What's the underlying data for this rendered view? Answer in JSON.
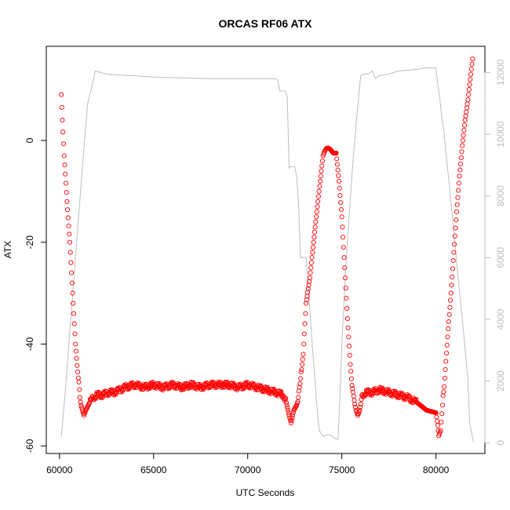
{
  "chart_data": {
    "type": "scatter",
    "title": "ORCAS RF06 ATX",
    "xlabel": "UTC Seconds",
    "ylabel": "ATX",
    "xlim": [
      59300,
      82600
    ],
    "ylim": [
      -61.5,
      18.5
    ],
    "x_ticks": [
      60000,
      65000,
      70000,
      75000,
      80000
    ],
    "y_ticks": [
      -60,
      -40,
      -20,
      0
    ],
    "y2lim": [
      -350,
      12850
    ],
    "y2_ticks": [
      0,
      2000,
      4000,
      6000,
      8000,
      10000,
      12000
    ],
    "colors": {
      "points": "#ff0000",
      "altitude_line": "#bebebe",
      "frame": "#000000",
      "right_axis": "#bebebe"
    },
    "series": [
      {
        "marker": "open-circle",
        "axis": "left",
        "x": [
          60100,
          60150,
          60250,
          60400,
          60550,
          60700,
          60850,
          61000,
          61150,
          61300,
          61400,
          61600,
          61800,
          62000,
          62300,
          62600,
          62900,
          63200,
          63500,
          64000,
          64500,
          65000,
          65500,
          66000,
          66500,
          67000,
          67500,
          68000,
          68500,
          69000,
          69500,
          70000,
          70500,
          71000,
          71500,
          71900,
          72050,
          72200,
          72300,
          72450,
          72600,
          72750,
          72950,
          73100,
          73300,
          73500,
          73700,
          73850,
          74000,
          74100,
          74200,
          74300,
          74400,
          74550,
          74700,
          74850,
          75000,
          75150,
          75300,
          75450,
          75600,
          75750,
          75850,
          75950,
          76100,
          76300,
          76600,
          77000,
          77500,
          78000,
          78500,
          79000,
          79500,
          80000,
          80100,
          80150,
          80250,
          80350,
          80500,
          80650,
          80800,
          80950,
          81100,
          81250,
          81400,
          81550,
          81700,
          81850,
          81950
        ],
        "y": [
          9,
          4,
          -3,
          -12,
          -20,
          -30,
          -40,
          -47,
          -52,
          -54,
          -53,
          -51.5,
          -50.5,
          -50,
          -50,
          -49.5,
          -49.5,
          -49,
          -48.5,
          -48,
          -48.5,
          -48,
          -48.5,
          -48,
          -48.5,
          -48,
          -48.5,
          -48,
          -48,
          -48,
          -48.5,
          -48,
          -48.5,
          -49,
          -49.5,
          -50,
          -51.5,
          -54,
          -55.5,
          -53,
          -52,
          -49,
          -42,
          -32,
          -27,
          -20,
          -13,
          -8,
          -3,
          -2,
          -1.5,
          -1.5,
          -1.8,
          -2.5,
          -2.5,
          -8,
          -15,
          -25,
          -35,
          -44,
          -50,
          -53,
          -54,
          -53,
          -50,
          -49.5,
          -49.5,
          -49,
          -49.5,
          -50,
          -50.5,
          -51.5,
          -53,
          -53.5,
          -56,
          -58,
          -57,
          -52,
          -45,
          -37,
          -30,
          -22,
          -14,
          -7,
          -1,
          4,
          8,
          13,
          16
        ]
      },
      {
        "name": "",
        "marker": "line",
        "axis": "right",
        "x": [
          60100,
          60300,
          60500,
          60700,
          60900,
          61100,
          61300,
          61500,
          61700,
          61900,
          62500,
          65000,
          68000,
          70000,
          71500,
          71600,
          71700,
          71800,
          71900,
          72000,
          72100,
          72200,
          72300,
          72400,
          72500,
          72600,
          72700,
          72800,
          72900,
          73000,
          73100,
          73200,
          73300,
          73400,
          73500,
          73600,
          73700,
          73800,
          74000,
          74200,
          74400,
          74500,
          74700,
          74800,
          74900,
          75000,
          75200,
          75400,
          75600,
          75800,
          76000,
          76200,
          76400,
          76600,
          76800,
          77000,
          77500,
          78000,
          79000,
          79500,
          80000,
          80100,
          80200,
          80300,
          80400,
          80600,
          80800,
          81000,
          81200,
          81400,
          81600,
          81700,
          81800,
          81900,
          82000
        ],
        "y": [
          200,
          1600,
          3200,
          4800,
          6400,
          8000,
          9600,
          11000,
          11500,
          12050,
          11950,
          11850,
          11800,
          11800,
          11800,
          11750,
          11400,
          11400,
          11400,
          11400,
          11200,
          8900,
          8950,
          8950,
          8950,
          8600,
          7800,
          6000,
          6000,
          6000,
          6000,
          5200,
          4300,
          3400,
          2600,
          1800,
          1000,
          400,
          200,
          250,
          250,
          200,
          120,
          120,
          1500,
          3200,
          5600,
          7500,
          9200,
          10600,
          11900,
          11950,
          11950,
          12050,
          11800,
          11900,
          11950,
          12050,
          12100,
          12150,
          12150,
          11600,
          11200,
          10600,
          10200,
          9000,
          7800,
          6500,
          5200,
          4000,
          2700,
          2000,
          600,
          300,
          0
        ]
      }
    ]
  }
}
